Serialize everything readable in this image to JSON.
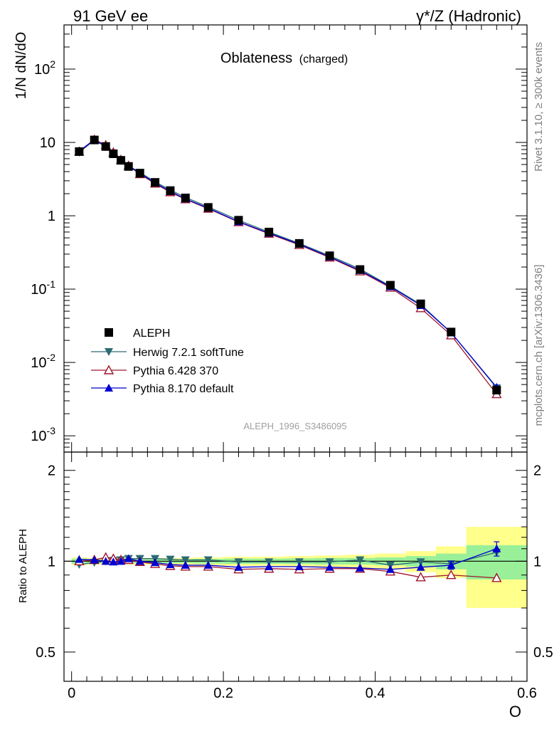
{
  "header": {
    "left": "91 GeV ee",
    "right": "γ*/Z (Hadronic)"
  },
  "side": {
    "rivet": "Rivet 3.1.10, ≥ 300k events",
    "mcplots": "mcplots.cern.ch [arXiv:1306.3436]"
  },
  "chart_data": {
    "type": "scatter",
    "title": "Oblateness",
    "title_suffix": "(charged)",
    "ylabel": "1/N dN/dO",
    "ratio_ylabel": "Ratio to ALEPH",
    "xlabel": "O",
    "analysis_id": "ALEPH_1996_S3486095",
    "xlim": [
      -0.01,
      0.6
    ],
    "ylim_log": [
      0.0006,
      400
    ],
    "ratio_ylim": [
      0.4,
      2.3
    ],
    "x_ticks": [
      "0",
      "0.2",
      "0.4",
      "0.6"
    ],
    "y_ticks_main": [
      "10^-3",
      "10^-2",
      "10^-1",
      "1",
      "10",
      "10^2"
    ],
    "ratio_ticks": [
      "0.5",
      "1",
      "2"
    ],
    "x": [
      0.01,
      0.03,
      0.045,
      0.055,
      0.065,
      0.075,
      0.09,
      0.11,
      0.13,
      0.15,
      0.18,
      0.22,
      0.26,
      0.3,
      0.34,
      0.38,
      0.42,
      0.46,
      0.5,
      0.56
    ],
    "bin_edges": [
      0.0,
      0.02,
      0.04,
      0.05,
      0.06,
      0.07,
      0.08,
      0.1,
      0.12,
      0.14,
      0.16,
      0.2,
      0.24,
      0.28,
      0.32,
      0.36,
      0.4,
      0.44,
      0.48,
      0.52,
      0.6
    ],
    "band_inner": [
      0.02,
      0.015,
      0.015,
      0.015,
      0.015,
      0.015,
      0.015,
      0.015,
      0.015,
      0.015,
      0.018,
      0.02,
      0.02,
      0.022,
      0.025,
      0.025,
      0.03,
      0.04,
      0.06,
      0.13
    ],
    "band_outer": [
      0.03,
      0.025,
      0.025,
      0.025,
      0.025,
      0.025,
      0.025,
      0.025,
      0.025,
      0.025,
      0.03,
      0.035,
      0.035,
      0.04,
      0.045,
      0.05,
      0.06,
      0.08,
      0.12,
      0.3
    ],
    "series": [
      {
        "name": "ALEPH",
        "marker": "square",
        "color": "#000000",
        "values": [
          7.5,
          10.8,
          8.8,
          7.0,
          5.7,
          4.7,
          3.8,
          2.85,
          2.2,
          1.75,
          1.3,
          0.87,
          0.6,
          0.42,
          0.285,
          0.185,
          0.113,
          0.063,
          0.026,
          0.0042
        ]
      },
      {
        "name": "Herwig 7.2.1 softTune",
        "marker": "triangle-down",
        "color": "#2d6b73",
        "values": [
          7.3,
          10.7,
          8.8,
          7.0,
          5.7,
          4.8,
          3.9,
          2.9,
          2.25,
          1.78,
          1.32,
          0.87,
          0.6,
          0.42,
          0.285,
          0.188,
          0.11,
          0.062,
          0.0255,
          0.0045
        ],
        "ratio": [
          0.975,
          0.99,
          1.0,
          1.005,
          1.01,
          1.02,
          1.02,
          1.02,
          1.015,
          1.01,
          1.01,
          0.995,
          0.995,
          0.995,
          0.995,
          1.01,
          0.97,
          0.995,
          0.98,
          1.07
        ]
      },
      {
        "name": "Pythia 6.428 370",
        "marker": "triangle-open",
        "color": "#a0152d",
        "values": [
          7.5,
          10.9,
          9.2,
          7.3,
          5.8,
          4.8,
          3.7,
          2.75,
          2.1,
          1.68,
          1.25,
          0.82,
          0.57,
          0.4,
          0.27,
          0.175,
          0.105,
          0.055,
          0.0235,
          0.0037
        ],
        "ratio": [
          1.0,
          1.01,
          1.03,
          1.02,
          1.01,
          1.01,
          0.995,
          0.98,
          0.965,
          0.96,
          0.96,
          0.94,
          0.945,
          0.94,
          0.945,
          0.945,
          0.925,
          0.885,
          0.9,
          0.88
        ]
      },
      {
        "name": "Pythia 8.170 default",
        "marker": "triangle-up",
        "color": "#0000d0",
        "values": [
          7.6,
          10.9,
          8.8,
          7.0,
          5.7,
          4.8,
          3.8,
          2.8,
          2.15,
          1.7,
          1.27,
          0.83,
          0.58,
          0.41,
          0.275,
          0.18,
          0.108,
          0.06,
          0.0255,
          0.0046
        ],
        "ratio": [
          1.015,
          1.01,
          1.0,
          0.995,
          1.0,
          1.02,
          1.0,
          0.99,
          0.975,
          0.97,
          0.97,
          0.955,
          0.96,
          0.96,
          0.955,
          0.95,
          0.94,
          0.955,
          0.97,
          1.1
        ]
      }
    ],
    "ratio_errors": {
      "last_point": 0.06,
      "second_last": 0.03
    }
  }
}
